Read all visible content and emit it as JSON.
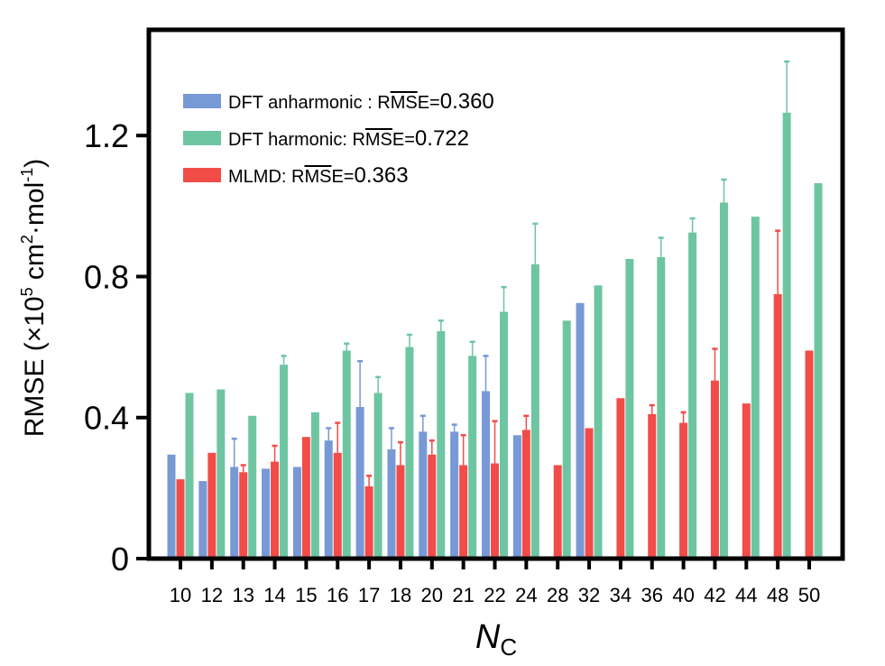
{
  "chart_data": {
    "type": "bar",
    "xlabel": "N",
    "xlabel_sub": "C",
    "ylabel": "RMSE (×10",
    "ylabel_sup1": "5",
    "ylabel_mid": " cm",
    "ylabel_sup2": "2",
    "ylabel_mid2": "·mol",
    "ylabel_sup3": "-1",
    "ylabel_end": ")",
    "ylim": [
      0,
      1.5
    ],
    "yticks": [
      0,
      0.4,
      0.8,
      1.2
    ],
    "ytick_labels": [
      "0",
      "0.4",
      "0.8",
      "1.2"
    ],
    "categories": [
      "10",
      "12",
      "13",
      "14",
      "15",
      "16",
      "17",
      "18",
      "20",
      "21",
      "22",
      "24",
      "28",
      "32",
      "34",
      "36",
      "40",
      "42",
      "44",
      "48",
      "50"
    ],
    "series": [
      {
        "name": "DFT anharmonic",
        "legend_prefix": "DFT anharmonic : R",
        "legend_bar": "MS",
        "legend_suffix": "E=",
        "legend_value": "0.360",
        "color": "#7799d6",
        "values": [
          0.295,
          0.22,
          0.26,
          0.255,
          0.26,
          0.335,
          0.43,
          0.31,
          0.36,
          0.36,
          0.475,
          0.35,
          null,
          0.725,
          null,
          null,
          null,
          null,
          null,
          null,
          null
        ],
        "errors": [
          0,
          0,
          0.08,
          0,
          0,
          0.035,
          0.13,
          0.06,
          0.045,
          0.02,
          0.1,
          0,
          null,
          0,
          null,
          null,
          null,
          null,
          null,
          null,
          null
        ]
      },
      {
        "name": "MLMD",
        "legend_prefix": "MLMD: R",
        "legend_bar": "MS",
        "legend_suffix": "E=",
        "legend_value": "0.363",
        "color": "#f24c49",
        "values": [
          0.225,
          0.3,
          0.245,
          0.275,
          0.345,
          0.3,
          0.205,
          0.265,
          0.295,
          0.265,
          0.27,
          0.365,
          0.265,
          0.37,
          0.455,
          0.41,
          0.385,
          0.505,
          0.44,
          0.75,
          0.59
        ],
        "errors": [
          0,
          0,
          0.02,
          0.045,
          0,
          0.085,
          0.03,
          0.065,
          0.04,
          0.085,
          0.12,
          0.04,
          0,
          0,
          0,
          0.025,
          0.03,
          0.09,
          0,
          0.18,
          0
        ]
      },
      {
        "name": "DFT harmonic",
        "legend_prefix": "DFT harmonic: R",
        "legend_bar": "MS",
        "legend_suffix": "E=",
        "legend_value": "0.722",
        "color": "#6ec5a2",
        "values": [
          0.47,
          0.48,
          0.405,
          0.55,
          0.415,
          0.59,
          0.47,
          0.6,
          0.645,
          0.575,
          0.7,
          0.835,
          0.675,
          0.775,
          0.85,
          0.855,
          0.925,
          1.01,
          0.97,
          1.265,
          1.065
        ],
        "errors": [
          0,
          0,
          0,
          0.025,
          0,
          0.02,
          0.045,
          0.035,
          0.03,
          0.04,
          0.07,
          0.115,
          0,
          0,
          0,
          0.055,
          0.04,
          0.065,
          0,
          0.145,
          0
        ]
      }
    ],
    "legend_order": [
      0,
      2,
      1
    ],
    "legend_position": "top-left"
  }
}
